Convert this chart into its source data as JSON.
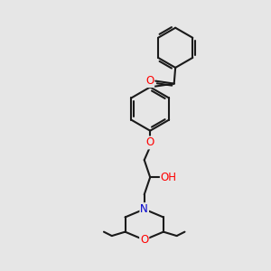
{
  "bg_color": "#e6e6e6",
  "bond_color": "#1a1a1a",
  "bond_width": 1.5,
  "atom_colors": {
    "O": "#ff0000",
    "N": "#0000cc",
    "C": "#1a1a1a"
  },
  "font_size_atom": 8.5
}
